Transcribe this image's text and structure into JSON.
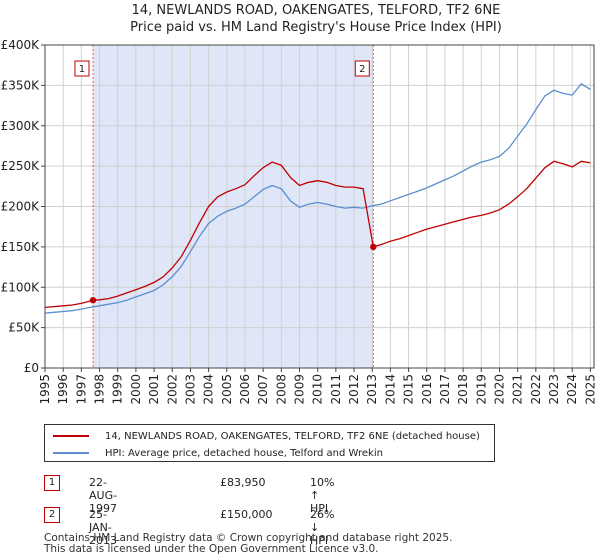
{
  "chart_data": {
    "type": "line",
    "title": "14, NEWLANDS ROAD, OAKENGATES, TELFORD, TF2 6NE",
    "subtitle": "Price paid vs. HM Land Registry's House Price Index (HPI)",
    "xlim": [
      1995,
      2025.2
    ],
    "ylim": [
      0,
      400000
    ],
    "x_ticks": [
      "1995",
      "1996",
      "1997",
      "1998",
      "1999",
      "2000",
      "2001",
      "2002",
      "2003",
      "2004",
      "2005",
      "2006",
      "2007",
      "2008",
      "2009",
      "2010",
      "2011",
      "2012",
      "2013",
      "2014",
      "2015",
      "2016",
      "2017",
      "2018",
      "2019",
      "2020",
      "2021",
      "2022",
      "2023",
      "2024",
      "2025"
    ],
    "y_ticks": [
      "£0",
      "£50K",
      "£100K",
      "£150K",
      "£200K",
      "£250K",
      "£300K",
      "£350K",
      "£400K"
    ],
    "y_tick_values": [
      0,
      50000,
      100000,
      150000,
      200000,
      250000,
      300000,
      350000,
      400000
    ],
    "series": [
      {
        "name": "14, NEWLANDS ROAD, OAKENGATES, TELFORD, TF2 6NE (detached house)",
        "color": "#c00000",
        "x": [
          1995.0,
          1995.5,
          1996.0,
          1996.5,
          1997.0,
          1997.64,
          1998.0,
          1998.5,
          1999.0,
          1999.5,
          2000.0,
          2000.5,
          2001.0,
          2001.5,
          2002.0,
          2002.5,
          2003.0,
          2003.5,
          2004.0,
          2004.5,
          2005.0,
          2005.5,
          2006.0,
          2006.5,
          2007.0,
          2007.5,
          2008.0,
          2008.5,
          2009.0,
          2009.5,
          2010.0,
          2010.5,
          2011.0,
          2011.5,
          2012.0,
          2012.5,
          2013.06,
          2013.5,
          2014.0,
          2014.5,
          2015.0,
          2015.5,
          2016.0,
          2016.5,
          2017.0,
          2017.5,
          2018.0,
          2018.5,
          2019.0,
          2019.5,
          2020.0,
          2020.5,
          2021.0,
          2021.5,
          2022.0,
          2022.5,
          2023.0,
          2023.5,
          2024.0,
          2024.5,
          2025.0
        ],
        "y": [
          75000,
          76000,
          77000,
          78000,
          80000,
          83950,
          84500,
          86000,
          89000,
          93000,
          97000,
          101000,
          106000,
          113000,
          124000,
          138000,
          158000,
          180000,
          200000,
          212000,
          218000,
          222000,
          227000,
          238000,
          248000,
          255000,
          251000,
          236000,
          226000,
          230000,
          232000,
          230000,
          226000,
          224000,
          224000,
          222000,
          150000,
          153000,
          157000,
          160000,
          164000,
          168000,
          172000,
          175000,
          178000,
          181000,
          184000,
          187000,
          189000,
          192000,
          196000,
          203000,
          212000,
          222000,
          235000,
          248000,
          256000,
          253000,
          249000,
          256000,
          254000
        ]
      },
      {
        "name": "HPI: Average price, detached house, Telford and Wrekin",
        "color": "#5b8fcf",
        "x": [
          1995.0,
          1995.5,
          1996.0,
          1996.5,
          1997.0,
          1997.5,
          1998.0,
          1998.5,
          1999.0,
          1999.5,
          2000.0,
          2000.5,
          2001.0,
          2001.5,
          2002.0,
          2002.5,
          2003.0,
          2003.5,
          2004.0,
          2004.5,
          2005.0,
          2005.5,
          2006.0,
          2006.5,
          2007.0,
          2007.5,
          2008.0,
          2008.5,
          2009.0,
          2009.5,
          2010.0,
          2010.5,
          2011.0,
          2011.5,
          2012.0,
          2012.5,
          2013.0,
          2013.5,
          2014.0,
          2014.5,
          2015.0,
          2015.5,
          2016.0,
          2016.5,
          2017.0,
          2017.5,
          2018.0,
          2018.5,
          2019.0,
          2019.5,
          2020.0,
          2020.5,
          2021.0,
          2021.5,
          2022.0,
          2022.5,
          2023.0,
          2023.5,
          2024.0,
          2024.5,
          2025.0
        ],
        "y": [
          68000,
          69000,
          70000,
          71000,
          73000,
          75000,
          77000,
          79000,
          81000,
          84000,
          88000,
          92000,
          96000,
          103000,
          113000,
          126000,
          144000,
          163000,
          179000,
          188000,
          194000,
          198000,
          203000,
          212000,
          221000,
          226000,
          222000,
          207000,
          199000,
          203000,
          205000,
          203000,
          200000,
          198000,
          199000,
          198000,
          201000,
          203000,
          207000,
          211000,
          215000,
          219000,
          223000,
          228000,
          233000,
          238000,
          244000,
          250000,
          255000,
          258000,
          262000,
          272000,
          287000,
          302000,
          320000,
          337000,
          344000,
          340000,
          338000,
          352000,
          345000
        ]
      }
    ],
    "sales": [
      {
        "label": "1",
        "x": 1997.64,
        "y": 83950
      },
      {
        "label": "2",
        "x": 2013.06,
        "y": 150000
      }
    ]
  },
  "legend": {
    "property": "14, NEWLANDS ROAD, OAKENGATES, TELFORD, TF2 6NE (detached house)",
    "hpi": "HPI: Average price, detached house, Telford and Wrekin",
    "property_color": "#c00000",
    "hpi_color": "#5b8fcf"
  },
  "sales_table": [
    {
      "num": "1",
      "date": "22-AUG-1997",
      "price": "£83,950",
      "hpi": "10% ↑ HPI"
    },
    {
      "num": "2",
      "date": "25-JAN-2013",
      "price": "£150,000",
      "hpi": "26% ↓ HPI"
    }
  ],
  "footer": {
    "line1": "Contains HM Land Registry data © Crown copyright and database right 2025.",
    "line2": "This data is licensed under the Open Government Licence v3.0."
  }
}
